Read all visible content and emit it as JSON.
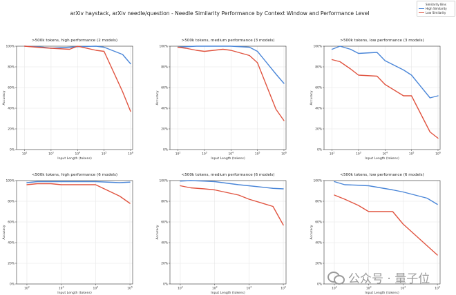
{
  "figure_title": "arXiv haystack, arXiv needle/question - Needle Similarity Performance by Context Window and Performance Level",
  "legend": {
    "title": "Similarity Bins",
    "entries": [
      {
        "label": "High Similarity",
        "color": "#4a86d8"
      },
      {
        "label": "Low Similarity",
        "color": "#e0533f"
      }
    ]
  },
  "watermark": {
    "text": "公众号 · 量子位"
  },
  "chart_data": [
    {
      "type": "line",
      "title": ">500k tokens, high performance (2 models)",
      "xlabel": "Input Length (tokens)",
      "ylabel": "Accuracy",
      "xscale": "log",
      "xlim": [
        50,
        1200000
      ],
      "ylim": [
        0,
        100
      ],
      "grid": true,
      "xticks": [
        100,
        1000,
        10000,
        100000,
        1000000
      ],
      "xtick_labels": [
        "10^2",
        "10^3",
        "10^4",
        "10^5",
        "10^6"
      ],
      "yticks": [
        0,
        20,
        40,
        60,
        80,
        100
      ],
      "ytick_labels": [
        "0%",
        "20%",
        "40%",
        "60%",
        "80%",
        "100%"
      ],
      "series": [
        {
          "name": "High Similarity",
          "color": "#4a86d8",
          "x": [
            100,
            500,
            1000,
            5000,
            10000,
            50000,
            100000,
            500000,
            1000000
          ],
          "y": [
            100,
            99,
            98,
            99,
            99.5,
            100,
            99,
            92,
            83
          ]
        },
        {
          "name": "Low Similarity",
          "color": "#e0533f",
          "x": [
            100,
            500,
            1000,
            5000,
            10000,
            50000,
            100000,
            500000,
            1000000
          ],
          "y": [
            100,
            98.5,
            98,
            97,
            100,
            96,
            95,
            56,
            37
          ]
        }
      ]
    },
    {
      "type": "line",
      "title": ">500k tokens, medium performance (3 models)",
      "xlabel": "Input Length (tokens)",
      "ylabel": "Accuracy",
      "xscale": "log",
      "xlim": [
        50,
        1200000
      ],
      "ylim": [
        0,
        100
      ],
      "grid": true,
      "xticks": [
        100,
        1000,
        10000,
        100000,
        1000000
      ],
      "xtick_labels": [
        "10^2",
        "10^3",
        "10^4",
        "10^5",
        "10^6"
      ],
      "yticks": [
        0,
        20,
        40,
        60,
        80,
        100
      ],
      "ytick_labels": [
        "0%",
        "20%",
        "40%",
        "60%",
        "80%",
        "100%"
      ],
      "series": [
        {
          "name": "High Similarity",
          "color": "#4a86d8",
          "x": [
            100,
            200,
            500,
            1000,
            5000,
            10000,
            50000,
            100000,
            500000,
            1000000
          ],
          "y": [
            99,
            99.5,
            100,
            100,
            100,
            100,
            99,
            95,
            73,
            64
          ]
        },
        {
          "name": "Low Similarity",
          "color": "#e0533f",
          "x": [
            100,
            200,
            500,
            1000,
            5000,
            10000,
            50000,
            100000,
            500000,
            1000000
          ],
          "y": [
            99,
            98,
            96,
            95,
            97,
            96,
            91,
            84,
            39,
            28
          ]
        }
      ]
    },
    {
      "type": "line",
      "title": ">500k tokens, low performance (3 models)",
      "xlabel": "Input Length (tokens)",
      "ylabel": "Accuracy",
      "xscale": "log",
      "xlim": [
        50,
        1200000
      ],
      "ylim": [
        0,
        100
      ],
      "grid": true,
      "xticks": [
        100,
        1000,
        10000,
        100000,
        1000000
      ],
      "xtick_labels": [
        "10^2",
        "10^3",
        "10^4",
        "10^5",
        "10^6"
      ],
      "yticks": [
        0,
        20,
        40,
        60,
        80,
        100
      ],
      "ytick_labels": [
        "0%",
        "20%",
        "40%",
        "60%",
        "80%",
        "100%"
      ],
      "series": [
        {
          "name": "High Similarity",
          "color": "#4a86d8",
          "x": [
            100,
            200,
            500,
            1000,
            5000,
            10000,
            50000,
            100000,
            500000,
            1000000
          ],
          "y": [
            97,
            100,
            97,
            93,
            94,
            86,
            77,
            72,
            50,
            52
          ]
        },
        {
          "name": "Low Similarity",
          "color": "#e0533f",
          "x": [
            100,
            200,
            500,
            1000,
            5000,
            10000,
            50000,
            100000,
            500000,
            1000000
          ],
          "y": [
            87,
            85,
            78,
            72,
            71,
            63,
            52,
            52,
            17,
            11
          ]
        }
      ]
    },
    {
      "type": "line",
      "title": "<500k tokens, high performance (6 models)",
      "xlabel": "Input Length (tokens)",
      "ylabel": "Accuracy",
      "xscale": "log",
      "xlim": [
        50,
        120000
      ],
      "ylim": [
        0,
        100
      ],
      "grid": true,
      "xticks": [
        100,
        1000,
        10000,
        100000
      ],
      "xtick_labels": [
        "10^2",
        "10^3",
        "10^4",
        "10^5"
      ],
      "yticks": [
        0,
        20,
        40,
        60,
        80,
        100
      ],
      "ytick_labels": [
        "0%",
        "20%",
        "40%",
        "60%",
        "80%",
        "100%"
      ],
      "series": [
        {
          "name": "High Similarity",
          "color": "#4a86d8",
          "x": [
            100,
            200,
            500,
            1000,
            5000,
            10000,
            50000,
            100000
          ],
          "y": [
            98,
            99,
            99,
            99,
            99,
            99,
            98,
            98.5
          ]
        },
        {
          "name": "Low Similarity",
          "color": "#e0533f",
          "x": [
            100,
            200,
            500,
            1000,
            5000,
            10000,
            50000,
            100000
          ],
          "y": [
            96,
            97,
            97,
            96,
            96,
            96,
            85,
            78
          ]
        }
      ]
    },
    {
      "type": "line",
      "title": "<500k tokens, medium performance (6 models)",
      "xlabel": "Input Length (tokens)",
      "ylabel": "Accuracy",
      "xscale": "log",
      "xlim": [
        50,
        120000
      ],
      "ylim": [
        0,
        100
      ],
      "grid": true,
      "xticks": [
        100,
        1000,
        10000,
        100000
      ],
      "xtick_labels": [
        "10^2",
        "10^3",
        "10^4",
        "10^5"
      ],
      "yticks": [
        0,
        20,
        40,
        60,
        80,
        100
      ],
      "ytick_labels": [
        "0%",
        "20%",
        "40%",
        "60%",
        "80%",
        "100%"
      ],
      "series": [
        {
          "name": "High Similarity",
          "color": "#4a86d8",
          "x": [
            100,
            200,
            500,
            1000,
            5000,
            10000,
            50000,
            100000
          ],
          "y": [
            99.5,
            100,
            99.5,
            99,
            96,
            95,
            92.5,
            92
          ]
        },
        {
          "name": "Low Similarity",
          "color": "#e0533f",
          "x": [
            100,
            200,
            500,
            1000,
            5000,
            10000,
            50000,
            100000
          ],
          "y": [
            95,
            93,
            92,
            91,
            86,
            82,
            75,
            57
          ]
        }
      ]
    },
    {
      "type": "line",
      "title": "<500k tokens, low performance (6 models)",
      "xlabel": "Input Length (tokens)",
      "ylabel": "Accuracy",
      "xscale": "log",
      "xlim": [
        50,
        120000
      ],
      "ylim": [
        0,
        100
      ],
      "grid": true,
      "xticks": [
        100,
        1000,
        10000,
        100000
      ],
      "xtick_labels": [
        "10^2",
        "10^3",
        "10^4",
        "10^5"
      ],
      "yticks": [
        0,
        20,
        40,
        60,
        80,
        100
      ],
      "ytick_labels": [
        "0%",
        "20%",
        "40%",
        "60%",
        "80%",
        "100%"
      ],
      "series": [
        {
          "name": "High Similarity",
          "color": "#4a86d8",
          "x": [
            100,
            200,
            500,
            1000,
            5000,
            10000,
            50000,
            100000
          ],
          "y": [
            99,
            96,
            95.5,
            95,
            91,
            89,
            83,
            77
          ]
        },
        {
          "name": "Low Similarity",
          "color": "#e0533f",
          "x": [
            100,
            200,
            500,
            1000,
            5000,
            10000,
            50000,
            100000
          ],
          "y": [
            86,
            82,
            76,
            70,
            70,
            58,
            37,
            28
          ]
        }
      ]
    }
  ]
}
